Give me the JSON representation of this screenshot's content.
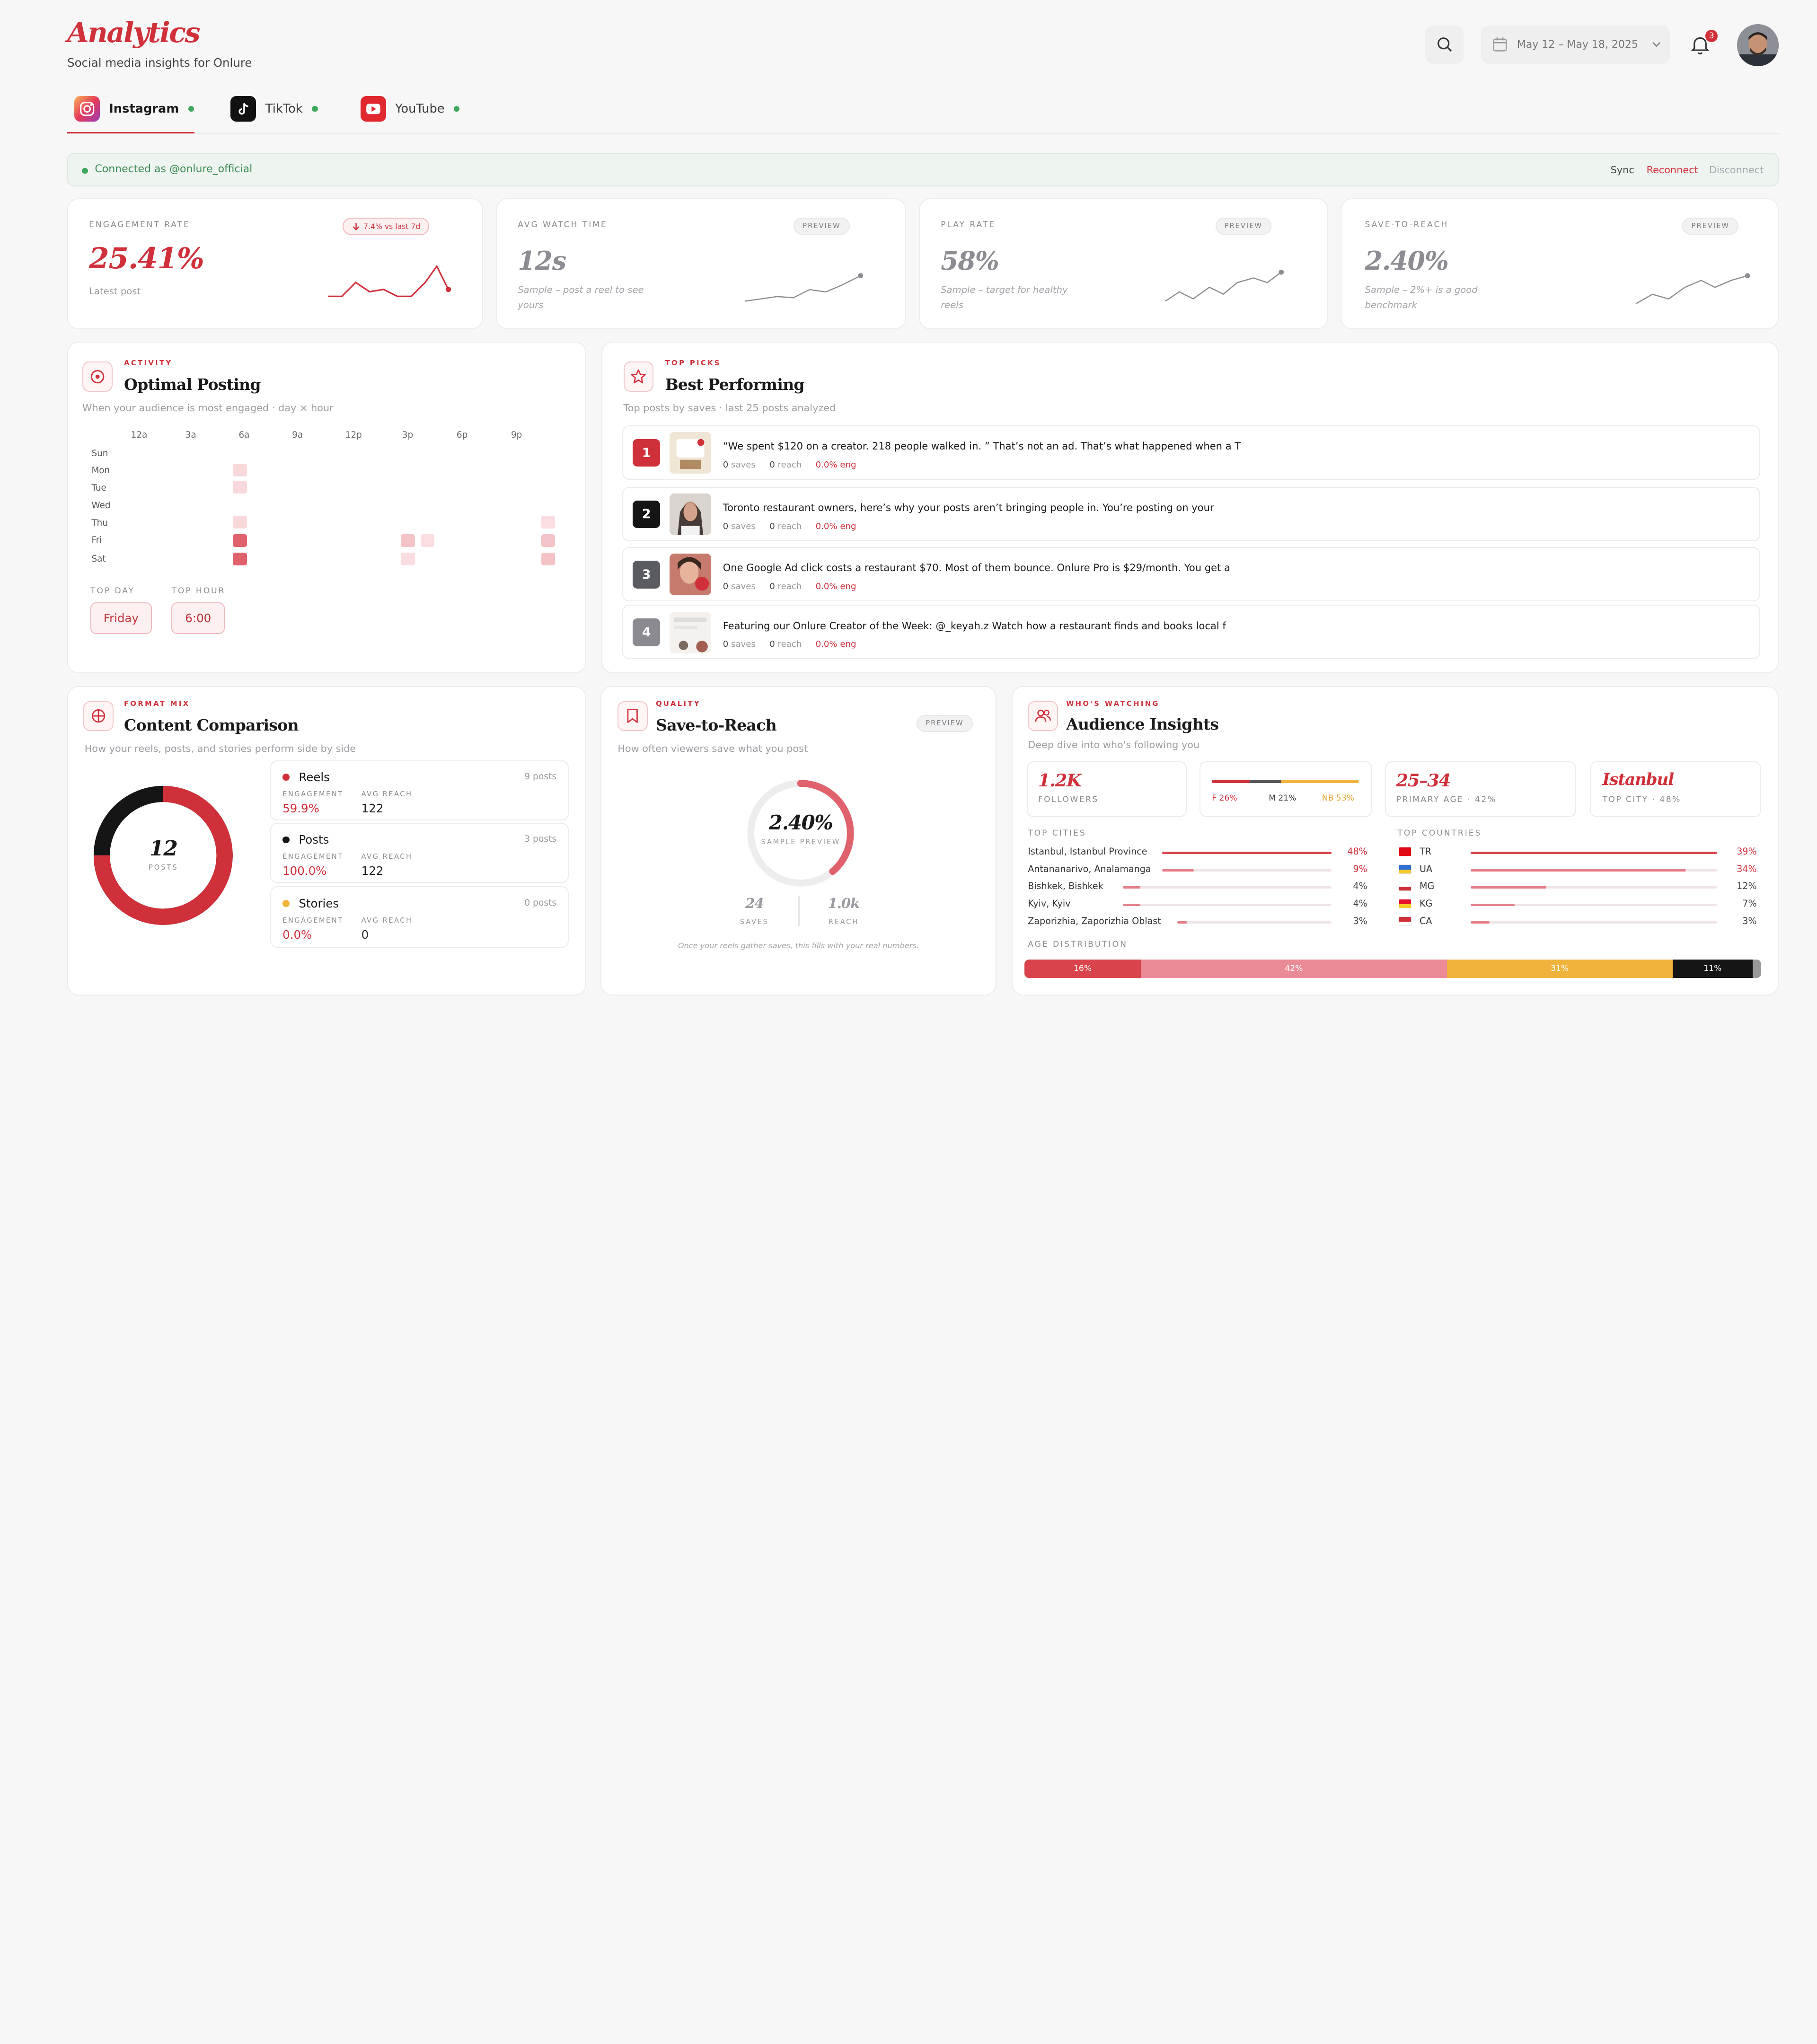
{
  "header": {
    "title": "Analytics",
    "subtitle": "Social media insights for Onlure",
    "date_range": "May 12 – May 18, 2025",
    "notification_count": "3"
  },
  "tabs": [
    {
      "label": "Instagram",
      "active": true
    },
    {
      "label": "TikTok",
      "active": false
    },
    {
      "label": "YouTube",
      "active": false
    }
  ],
  "connection": {
    "status": "Connected as @onlure_official",
    "sync": "Sync",
    "reconnect": "Reconnect",
    "disconnect": "Disconnect"
  },
  "kpis": [
    {
      "label": "ENGAGEMENT RATE",
      "value": "25.41%",
      "note": "Latest post",
      "badge": "7.4% vs last 7d"
    },
    {
      "label": "AVG WATCH TIME",
      "value": "12s",
      "note": "Sample – post a reel to see yours",
      "badge": "PREVIEW"
    },
    {
      "label": "PLAY RATE",
      "value": "58%",
      "note": "Sample – target for healthy reels",
      "badge": "PREVIEW"
    },
    {
      "label": "SAVE-TO-REACH",
      "value": "2.40%",
      "note": "Sample – 2%+ is a good benchmark",
      "badge": "PREVIEW"
    }
  ],
  "optimal_posting": {
    "kicker": "ACTIVITY",
    "title": "Optimal Posting",
    "subtitle": "When your audience is most engaged · day × hour",
    "hours": [
      "12a",
      "3a",
      "6a",
      "9a",
      "12p",
      "3p",
      "6p",
      "9p"
    ],
    "days": [
      "Sun",
      "Mon",
      "Tue",
      "Wed",
      "Thu",
      "Fri",
      "Sat"
    ],
    "top_day_label": "TOP DAY",
    "top_day": "Friday",
    "top_hour_label": "TOP HOUR",
    "top_hour": "6:00"
  },
  "best_performing": {
    "kicker": "TOP PICKS",
    "title": "Best Performing",
    "subtitle": "Top posts by saves · last 25 posts analyzed",
    "posts": [
      {
        "rank": "1",
        "text": "“We spent $120 on a creator. 218 people walked in. ” That’s not an ad. That’s what happened when a T",
        "saves": "0",
        "saves_label": "saves",
        "reach": "0",
        "reach_label": "reach",
        "eng": "0.0% eng"
      },
      {
        "rank": "2",
        "text": "Toronto restaurant owners, here’s why your posts aren’t bringing people in. You’re posting on your",
        "saves": "0",
        "saves_label": "saves",
        "reach": "0",
        "reach_label": "reach",
        "eng": "0.0% eng"
      },
      {
        "rank": "3",
        "text": "One Google Ad click costs a restaurant $70. Most of them bounce. Onlure Pro is $29/month. You get a",
        "saves": "0",
        "saves_label": "saves",
        "reach": "0",
        "reach_label": "reach",
        "eng": "0.0% eng"
      },
      {
        "rank": "4",
        "text": "Featuring our Onlure Creator of the Week: @_keyah.z Watch how a restaurant finds and books local f",
        "saves": "0",
        "saves_label": "saves",
        "reach": "0",
        "reach_label": "reach",
        "eng": "0.0% eng"
      }
    ]
  },
  "content_comparison": {
    "kicker": "FORMAT MIX",
    "title": "Content Comparison",
    "subtitle": "How your reels, posts, and stories perform side by side",
    "total": "12",
    "total_label": "POSTS",
    "engagement_label": "ENGAGEMENT",
    "avg_reach_label": "AVG REACH",
    "formats": [
      {
        "name": "Reels",
        "count": "9 posts",
        "engagement": "59.9%",
        "avg_reach": "122",
        "color": "#d0303a"
      },
      {
        "name": "Posts",
        "count": "3 posts",
        "engagement": "100.0%",
        "avg_reach": "122",
        "color": "#151515"
      },
      {
        "name": "Stories",
        "count": "0 posts",
        "engagement": "0.0%",
        "avg_reach": "0",
        "color": "#f0b33c"
      }
    ]
  },
  "save_to_reach": {
    "kicker": "QUALITY",
    "title": "Save-to-Reach",
    "badge": "PREVIEW",
    "subtitle": "How often viewers save what you post",
    "value": "2.40%",
    "value_label": "SAMPLE PREVIEW",
    "saves": "24",
    "saves_label": "SAVES",
    "reach": "1.0k",
    "reach_label": "REACH",
    "footnote": "Once your reels gather saves, this fills with your real numbers."
  },
  "audience": {
    "kicker": "WHO'S WATCHING",
    "title": "Audience Insights",
    "subtitle": "Deep dive into who's following you",
    "followers": "1.2K",
    "followers_label": "FOLLOWERS",
    "gender": {
      "f": "F 26%",
      "m": "M 21%",
      "nb": "NB 53%"
    },
    "age": "25–34",
    "age_label": "PRIMARY AGE · 42%",
    "city": "Istanbul",
    "city_label": "TOP CITY · 48%",
    "top_cities_label": "TOP CITIES",
    "top_countries_label": "TOP COUNTRIES",
    "cities": [
      {
        "name": "Istanbul, Istanbul Province",
        "pct": "48%",
        "value": 48
      },
      {
        "name": "Antananarivo, Analamanga",
        "pct": "9%",
        "value": 9
      },
      {
        "name": "Bishkek, Bishkek",
        "pct": "4%",
        "value": 4
      },
      {
        "name": "Kyiv, Kyiv",
        "pct": "4%",
        "value": 4
      },
      {
        "name": "Zaporizhia, Zaporizhia Oblast",
        "pct": "3%",
        "value": 3
      }
    ],
    "countries": [
      {
        "code": "TR",
        "pct": "39%",
        "value": 39
      },
      {
        "code": "UA",
        "pct": "34%",
        "value": 34
      },
      {
        "code": "MG",
        "pct": "12%",
        "value": 12
      },
      {
        "code": "KG",
        "pct": "7%",
        "value": 7
      },
      {
        "code": "CA",
        "pct": "3%",
        "value": 3
      }
    ],
    "age_distribution_label": "AGE DISTRIBUTION",
    "age_distribution": [
      {
        "label": "16%",
        "value": 16,
        "color": "#d9444c"
      },
      {
        "label": "42%",
        "value": 42,
        "color": "#ea8a96"
      },
      {
        "label": "31%",
        "value": 31,
        "color": "#f0b33c"
      },
      {
        "label": "11%",
        "value": 11,
        "color": "#151515"
      }
    ]
  }
}
